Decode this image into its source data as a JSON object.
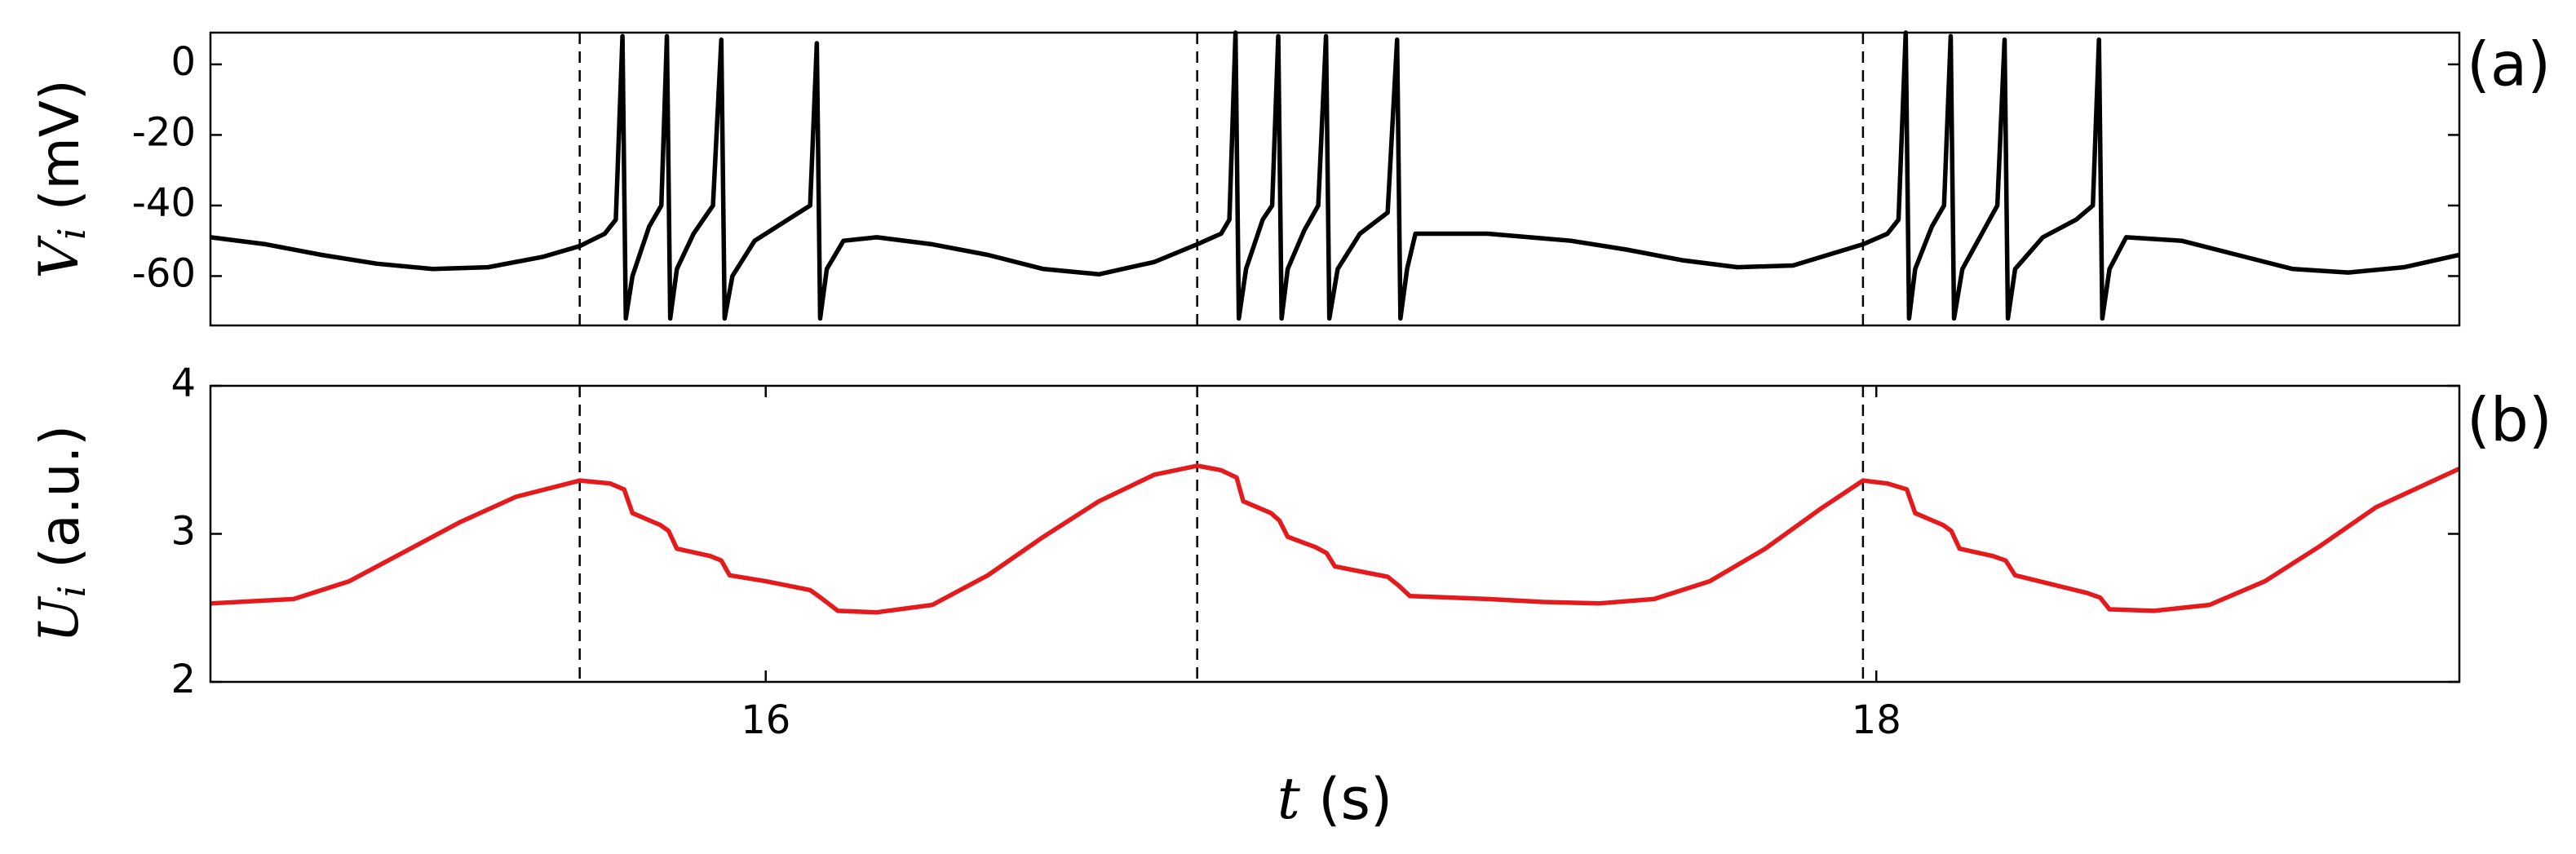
{
  "chart_data": [
    {
      "type": "line",
      "annotation": "(a)",
      "ylabel_symbol": "V",
      "ylabel_subscript": "i",
      "ylabel_unit": "(mV)",
      "xlim": [
        15,
        19.05
      ],
      "ylim": [
        -74,
        9
      ],
      "yticks": [
        0,
        -20,
        -40,
        -60
      ],
      "vlines": [
        15.665,
        16.777,
        17.976
      ],
      "x": [
        15.0,
        15.1,
        15.2,
        15.3,
        15.4,
        15.5,
        15.6,
        15.665,
        15.71,
        15.73,
        15.742,
        15.748,
        15.76,
        15.79,
        15.812,
        15.822,
        15.828,
        15.84,
        15.87,
        15.905,
        15.92,
        15.926,
        15.94,
        15.98,
        16.03,
        16.08,
        16.092,
        16.098,
        16.11,
        16.14,
        16.2,
        16.3,
        16.4,
        16.5,
        16.6,
        16.7,
        16.777,
        16.82,
        16.835,
        16.846,
        16.852,
        16.865,
        16.895,
        16.912,
        16.923,
        16.929,
        16.94,
        16.97,
        16.995,
        17.009,
        17.015,
        17.03,
        17.07,
        17.12,
        17.137,
        17.143,
        17.155,
        17.17,
        17.3,
        17.45,
        17.55,
        17.65,
        17.75,
        17.85,
        17.976,
        18.02,
        18.04,
        18.053,
        18.059,
        18.07,
        18.1,
        18.122,
        18.134,
        18.14,
        18.155,
        18.19,
        18.218,
        18.231,
        18.237,
        18.25,
        18.3,
        18.36,
        18.39,
        18.401,
        18.407,
        18.42,
        18.45,
        18.55,
        18.65,
        18.75,
        18.85,
        18.95,
        19.05
      ],
      "series": [
        {
          "color": "#000000",
          "values": [
            -49,
            -51,
            -54,
            -56.5,
            -58,
            -57.5,
            -54.5,
            -51.5,
            -48,
            -44,
            8,
            -72,
            -60,
            -46,
            -40,
            8,
            -72,
            -58,
            -48,
            -40,
            7,
            -72,
            -60,
            -50,
            -45,
            -40,
            6,
            -72,
            -58,
            -50,
            -49,
            -51,
            -54,
            -58,
            -59.5,
            -56,
            -51,
            -48,
            -44,
            9,
            -72,
            -58,
            -44,
            -40,
            8,
            -72,
            -58,
            -47,
            -40,
            8,
            -72,
            -58,
            -48,
            -42,
            7,
            -72,
            -58,
            -48,
            -48,
            -50,
            -52.5,
            -55.5,
            -57.5,
            -57,
            -51,
            -48,
            -44,
            9,
            -72,
            -58,
            -46,
            -40,
            8,
            -72,
            -58,
            -48,
            -40,
            7,
            -72,
            -58,
            -49,
            -44,
            -40,
            7,
            -72,
            -58,
            -49,
            -50,
            -54,
            -58,
            -59,
            -57.5,
            -54
          ]
        }
      ]
    },
    {
      "type": "line",
      "annotation": "(b)",
      "ylabel_symbol": "U",
      "ylabel_subscript": "i",
      "ylabel_unit": "(a.u.)",
      "xlabel_symbol": "t",
      "xlabel_unit": "(s)",
      "xlim": [
        15,
        19.05
      ],
      "ylim": [
        2,
        4
      ],
      "yticks": [
        2,
        3,
        4
      ],
      "xticks": [
        16,
        18
      ],
      "vlines": [
        15.665,
        16.777,
        17.976
      ],
      "x": [
        15.0,
        15.15,
        15.25,
        15.35,
        15.45,
        15.55,
        15.665,
        15.72,
        15.745,
        15.76,
        15.81,
        15.825,
        15.84,
        15.9,
        15.92,
        15.935,
        16.0,
        16.08,
        16.095,
        16.13,
        16.2,
        16.3,
        16.4,
        16.5,
        16.6,
        16.7,
        16.777,
        16.82,
        16.848,
        16.86,
        16.91,
        16.925,
        16.94,
        16.99,
        17.01,
        17.025,
        17.12,
        17.14,
        17.16,
        17.3,
        17.4,
        17.5,
        17.6,
        17.7,
        17.8,
        17.9,
        17.976,
        18.02,
        18.055,
        18.07,
        18.12,
        18.135,
        18.15,
        18.21,
        18.233,
        18.25,
        18.38,
        18.403,
        18.42,
        18.5,
        18.6,
        18.7,
        18.8,
        18.9,
        19.05
      ],
      "series": [
        {
          "color": "#e41a1c",
          "values": [
            2.53,
            2.56,
            2.68,
            2.88,
            3.08,
            3.25,
            3.36,
            3.34,
            3.3,
            3.14,
            3.06,
            3.02,
            2.9,
            2.85,
            2.82,
            2.72,
            2.68,
            2.62,
            2.58,
            2.48,
            2.47,
            2.52,
            2.72,
            2.98,
            3.22,
            3.4,
            3.46,
            3.43,
            3.38,
            3.22,
            3.14,
            3.09,
            2.98,
            2.91,
            2.87,
            2.78,
            2.71,
            2.65,
            2.58,
            2.56,
            2.54,
            2.53,
            2.56,
            2.68,
            2.9,
            3.17,
            3.36,
            3.34,
            3.3,
            3.14,
            3.06,
            3.02,
            2.9,
            2.85,
            2.82,
            2.72,
            2.6,
            2.57,
            2.49,
            2.48,
            2.52,
            2.68,
            2.92,
            3.18,
            3.44
          ]
        }
      ]
    }
  ]
}
